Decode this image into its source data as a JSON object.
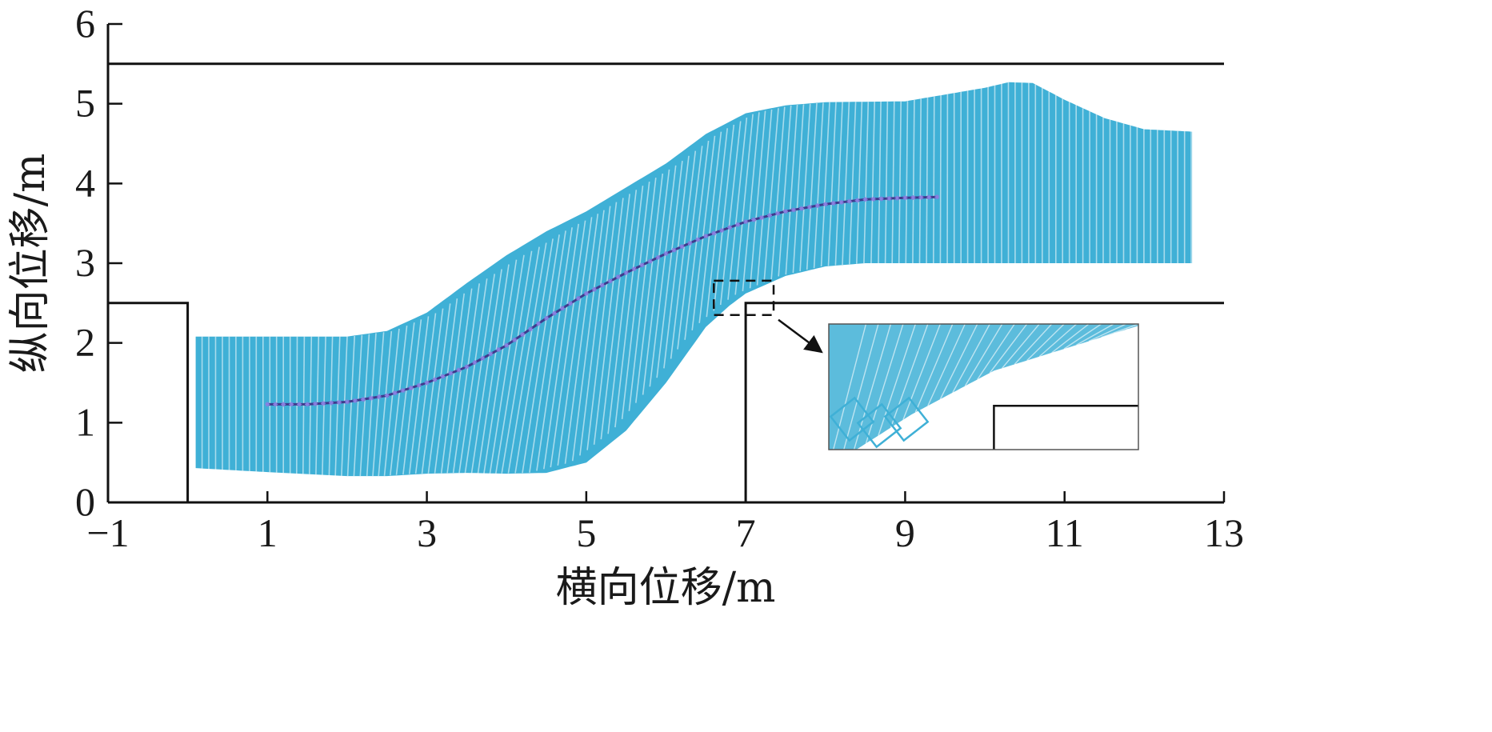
{
  "chart_data": {
    "type": "line",
    "title": "",
    "xlabel": "横向位移/m",
    "ylabel": "纵向位移/m",
    "xlim": [
      -1,
      13
    ],
    "ylim": [
      0,
      6
    ],
    "x_ticks": [
      "−1",
      "1",
      "3",
      "5",
      "7",
      "9",
      "11",
      "13"
    ],
    "x_tick_values": [
      -1,
      1,
      3,
      5,
      7,
      9,
      11,
      13
    ],
    "y_ticks": [
      "0",
      "1",
      "2",
      "3",
      "4",
      "5",
      "6"
    ],
    "y_tick_values": [
      0,
      1,
      2,
      3,
      4,
      5,
      6
    ],
    "grid": false,
    "colors": {
      "vehicle_outline": "#3fb0d6",
      "path_line": "#3f3a8c",
      "path_marker": "#8a7fe0",
      "boundary": "#111111"
    },
    "boundaries": {
      "upper_wall": {
        "x": [
          -1,
          13
        ],
        "y": [
          5.5,
          5.5
        ]
      },
      "left_obstacle": {
        "x": [
          -1,
          0,
          0
        ],
        "y": [
          2.5,
          2.5,
          0
        ]
      },
      "right_obstacle": {
        "x": [
          7,
          7,
          13
        ],
        "y": [
          0,
          2.5,
          2.5
        ]
      }
    },
    "series": [
      {
        "x": [
          1.0,
          1.5,
          2.0,
          2.5,
          3.0,
          3.5,
          4.0,
          4.5,
          5.0,
          5.5,
          6.0,
          6.5,
          7.0,
          7.5,
          8.0,
          8.5,
          9.0,
          9.4
        ],
        "y": [
          1.23,
          1.23,
          1.26,
          1.34,
          1.5,
          1.7,
          1.97,
          2.31,
          2.62,
          2.88,
          3.12,
          3.34,
          3.52,
          3.65,
          3.74,
          3.8,
          3.82,
          3.83
        ]
      }
    ],
    "vehicle_envelope": {
      "upper": {
        "x": [
          0.1,
          1.0,
          2.0,
          2.5,
          3.0,
          3.5,
          4.0,
          4.5,
          5.0,
          5.5,
          6.0,
          6.5,
          7.0,
          7.5,
          8.0,
          9.0,
          10.0,
          10.3,
          10.6,
          11.0,
          11.5,
          12.0,
          12.6
        ],
        "y": [
          2.08,
          2.08,
          2.08,
          2.15,
          2.38,
          2.75,
          3.1,
          3.4,
          3.65,
          3.95,
          4.25,
          4.62,
          4.88,
          4.98,
          5.02,
          5.03,
          5.2,
          5.27,
          5.26,
          5.05,
          4.82,
          4.68,
          4.65
        ]
      },
      "lower": {
        "x": [
          0.1,
          1.0,
          2.0,
          2.5,
          3.0,
          3.5,
          4.0,
          4.5,
          5.0,
          5.5,
          6.0,
          6.5,
          6.8,
          7.0,
          7.5,
          8.0,
          8.5,
          9.0,
          10.0,
          11.0,
          12.0,
          12.6
        ],
        "y": [
          0.43,
          0.38,
          0.33,
          0.33,
          0.36,
          0.37,
          0.36,
          0.37,
          0.5,
          0.9,
          1.5,
          2.2,
          2.47,
          2.62,
          2.84,
          2.96,
          3.0,
          3.0,
          3.0,
          3.0,
          3.0,
          3.0
        ]
      }
    },
    "zoom_region": {
      "x": [
        6.6,
        7.35
      ],
      "y": [
        2.35,
        2.78
      ]
    }
  }
}
